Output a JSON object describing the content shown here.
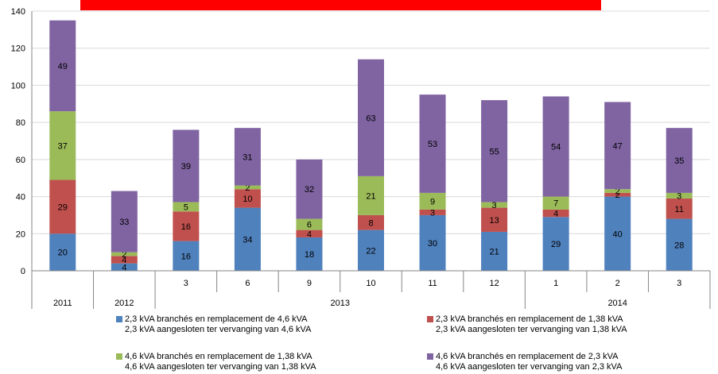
{
  "chart_data": {
    "type": "bar",
    "stacked": true,
    "ylim": [
      0,
      140
    ],
    "yticks": [
      0,
      20,
      40,
      60,
      80,
      100,
      120,
      140
    ],
    "grid": true,
    "colors": [
      "#4f81bd",
      "#c0504d",
      "#9bbb59",
      "#8064a2"
    ],
    "categories": [
      "",
      "",
      "3",
      "6",
      "9",
      "10",
      "11",
      "12",
      "1",
      "2",
      "3"
    ],
    "groups": [
      {
        "label": "2011",
        "span": 1
      },
      {
        "label": "2012",
        "span": 1
      },
      {
        "label": "2013",
        "span": 6
      },
      {
        "label": "2014",
        "span": 3
      }
    ],
    "series": [
      {
        "name": "2,3 kVA branchés en remplacement de 4,6 kVA",
        "name_nl": "2,3 kVA aangesloten ter vervanging van 4,6 kVA",
        "values": [
          20,
          4,
          16,
          34,
          18,
          22,
          30,
          21,
          29,
          40,
          28
        ]
      },
      {
        "name": "2,3 kVA branchés en remplacement de 1,38 kVA",
        "name_nl": "2,3 kVA aangesloten ter vervanging van 1,38 kVA",
        "values": [
          29,
          4,
          16,
          10,
          4,
          8,
          3,
          13,
          4,
          2,
          11
        ]
      },
      {
        "name": "4,6 kVA branchés en remplacement de 1,38 kVA",
        "name_nl": "4,6 kVA aangesloten ter vervanging van 1,38 kVA",
        "values": [
          37,
          2,
          5,
          2,
          6,
          21,
          9,
          3,
          7,
          2,
          3
        ]
      },
      {
        "name": "4,6 kVA branchés en remplacement de 2,3 kVA",
        "name_nl": "4,6 kVA aangesloten ter vervanging van 2,3 kVA",
        "values": [
          49,
          33,
          39,
          31,
          32,
          63,
          53,
          55,
          54,
          47,
          35
        ]
      }
    ],
    "legend_position": "bottom"
  }
}
